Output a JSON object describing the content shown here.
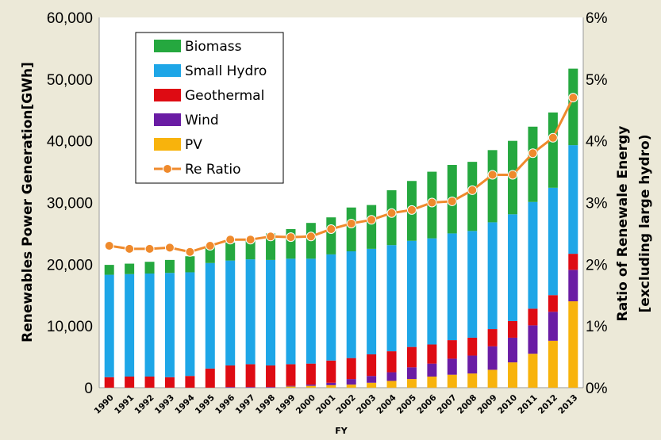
{
  "chart_data": {
    "type": "bar",
    "stacked": true,
    "xlabel": "FY",
    "ylabel": "Renewables Power Generation[GWh]",
    "y2label_line1": "Ratio of Renewale Energy",
    "y2label_line2": "[excluding large hydro)",
    "ylim": [
      0,
      60000
    ],
    "y2lim": [
      0,
      6
    ],
    "yticks": [
      "0",
      "10,000",
      "20,000",
      "30,000",
      "40,000",
      "50,000",
      "60,000"
    ],
    "y2ticks": [
      "0%",
      "1%",
      "2%",
      "3%",
      "4%",
      "5%",
      "6%"
    ],
    "grid": false,
    "legend_position": "top-left",
    "categories": [
      "1990",
      "1991",
      "1992",
      "1993",
      "1994",
      "1995",
      "1996",
      "1997",
      "1998",
      "1999",
      "2000",
      "2001",
      "2002",
      "2003",
      "2004",
      "2005",
      "2006",
      "2007",
      "2008",
      "2009",
      "2010",
      "2011",
      "2012",
      "2013"
    ],
    "series": [
      {
        "name": "PV",
        "color": "#f8b30c",
        "values": [
          0,
          0,
          0,
          0,
          0,
          0,
          0,
          0,
          0,
          200,
          300,
          400,
          500,
          800,
          1100,
          1400,
          1800,
          2100,
          2300,
          2900,
          4100,
          5500,
          7600,
          14000
        ]
      },
      {
        "name": "Wind",
        "color": "#6a1ca4",
        "values": [
          0,
          0,
          0,
          0,
          0,
          0,
          100,
          100,
          100,
          100,
          200,
          400,
          900,
          1100,
          1400,
          1900,
          2100,
          2600,
          2900,
          3800,
          4000,
          4600,
          4700,
          5100
        ]
      },
      {
        "name": "Geothermal",
        "color": "#de0b13",
        "values": [
          1700,
          1800,
          1800,
          1700,
          1900,
          3100,
          3500,
          3700,
          3500,
          3500,
          3400,
          3600,
          3400,
          3500,
          3400,
          3300,
          3100,
          3000,
          2900,
          2800,
          2700,
          2700,
          2700,
          2600
        ]
      },
      {
        "name": "Small Hydro",
        "color": "#1ea6e7",
        "values": [
          16600,
          16600,
          16700,
          16900,
          16800,
          17100,
          17000,
          17000,
          17100,
          17100,
          17000,
          17200,
          17300,
          17100,
          17200,
          17200,
          17200,
          17300,
          17300,
          17300,
          17300,
          17300,
          17400,
          17600
        ]
      },
      {
        "name": "Biomass",
        "color": "#25a83f",
        "values": [
          1600,
          1700,
          1900,
          2100,
          2600,
          2900,
          2900,
          3100,
          4300,
          4800,
          5800,
          6000,
          7100,
          7100,
          8900,
          9700,
          10800,
          11100,
          11200,
          11700,
          11900,
          12200,
          12200,
          12400
        ]
      }
    ],
    "line_series": {
      "name": "Re Ratio",
      "axis": "right",
      "color": "#ef8a2c",
      "values": [
        2.3,
        2.25,
        2.25,
        2.27,
        2.2,
        2.3,
        2.4,
        2.4,
        2.45,
        2.44,
        2.45,
        2.57,
        2.66,
        2.72,
        2.83,
        2.88,
        3.0,
        3.02,
        3.2,
        3.45,
        3.45,
        3.8,
        4.05,
        4.7
      ]
    },
    "legend_order": [
      "Biomass",
      "Small Hydro",
      "Geothermal",
      "Wind",
      "PV",
      "Re Ratio"
    ]
  }
}
